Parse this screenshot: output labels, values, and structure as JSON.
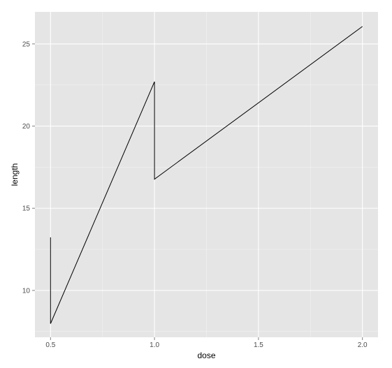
{
  "chart_data": {
    "type": "line",
    "title": "",
    "xlabel": "dose",
    "ylabel": "length",
    "x_ticks": [
      "0.5",
      "1.0",
      "1.5",
      "2.0"
    ],
    "y_ticks": [
      "10",
      "15",
      "20",
      "25"
    ],
    "xlim": [
      0.425,
      2.075
    ],
    "ylim": [
      7.15,
      26.95
    ],
    "grid": true,
    "legend": "none",
    "series": [
      {
        "x": [
          0.5,
          0.5,
          1.0,
          1.0,
          2.0
        ],
        "y": [
          13.23,
          7.98,
          22.7,
          16.77,
          26.06
        ]
      }
    ]
  },
  "colors": {
    "panel_background": "#e5e5e5",
    "major_grid": "#ffffff",
    "minor_grid": "#f2f2f2",
    "line": "#000000",
    "tick_label": "#4d4d4d",
    "axis_title": "#000000"
  }
}
